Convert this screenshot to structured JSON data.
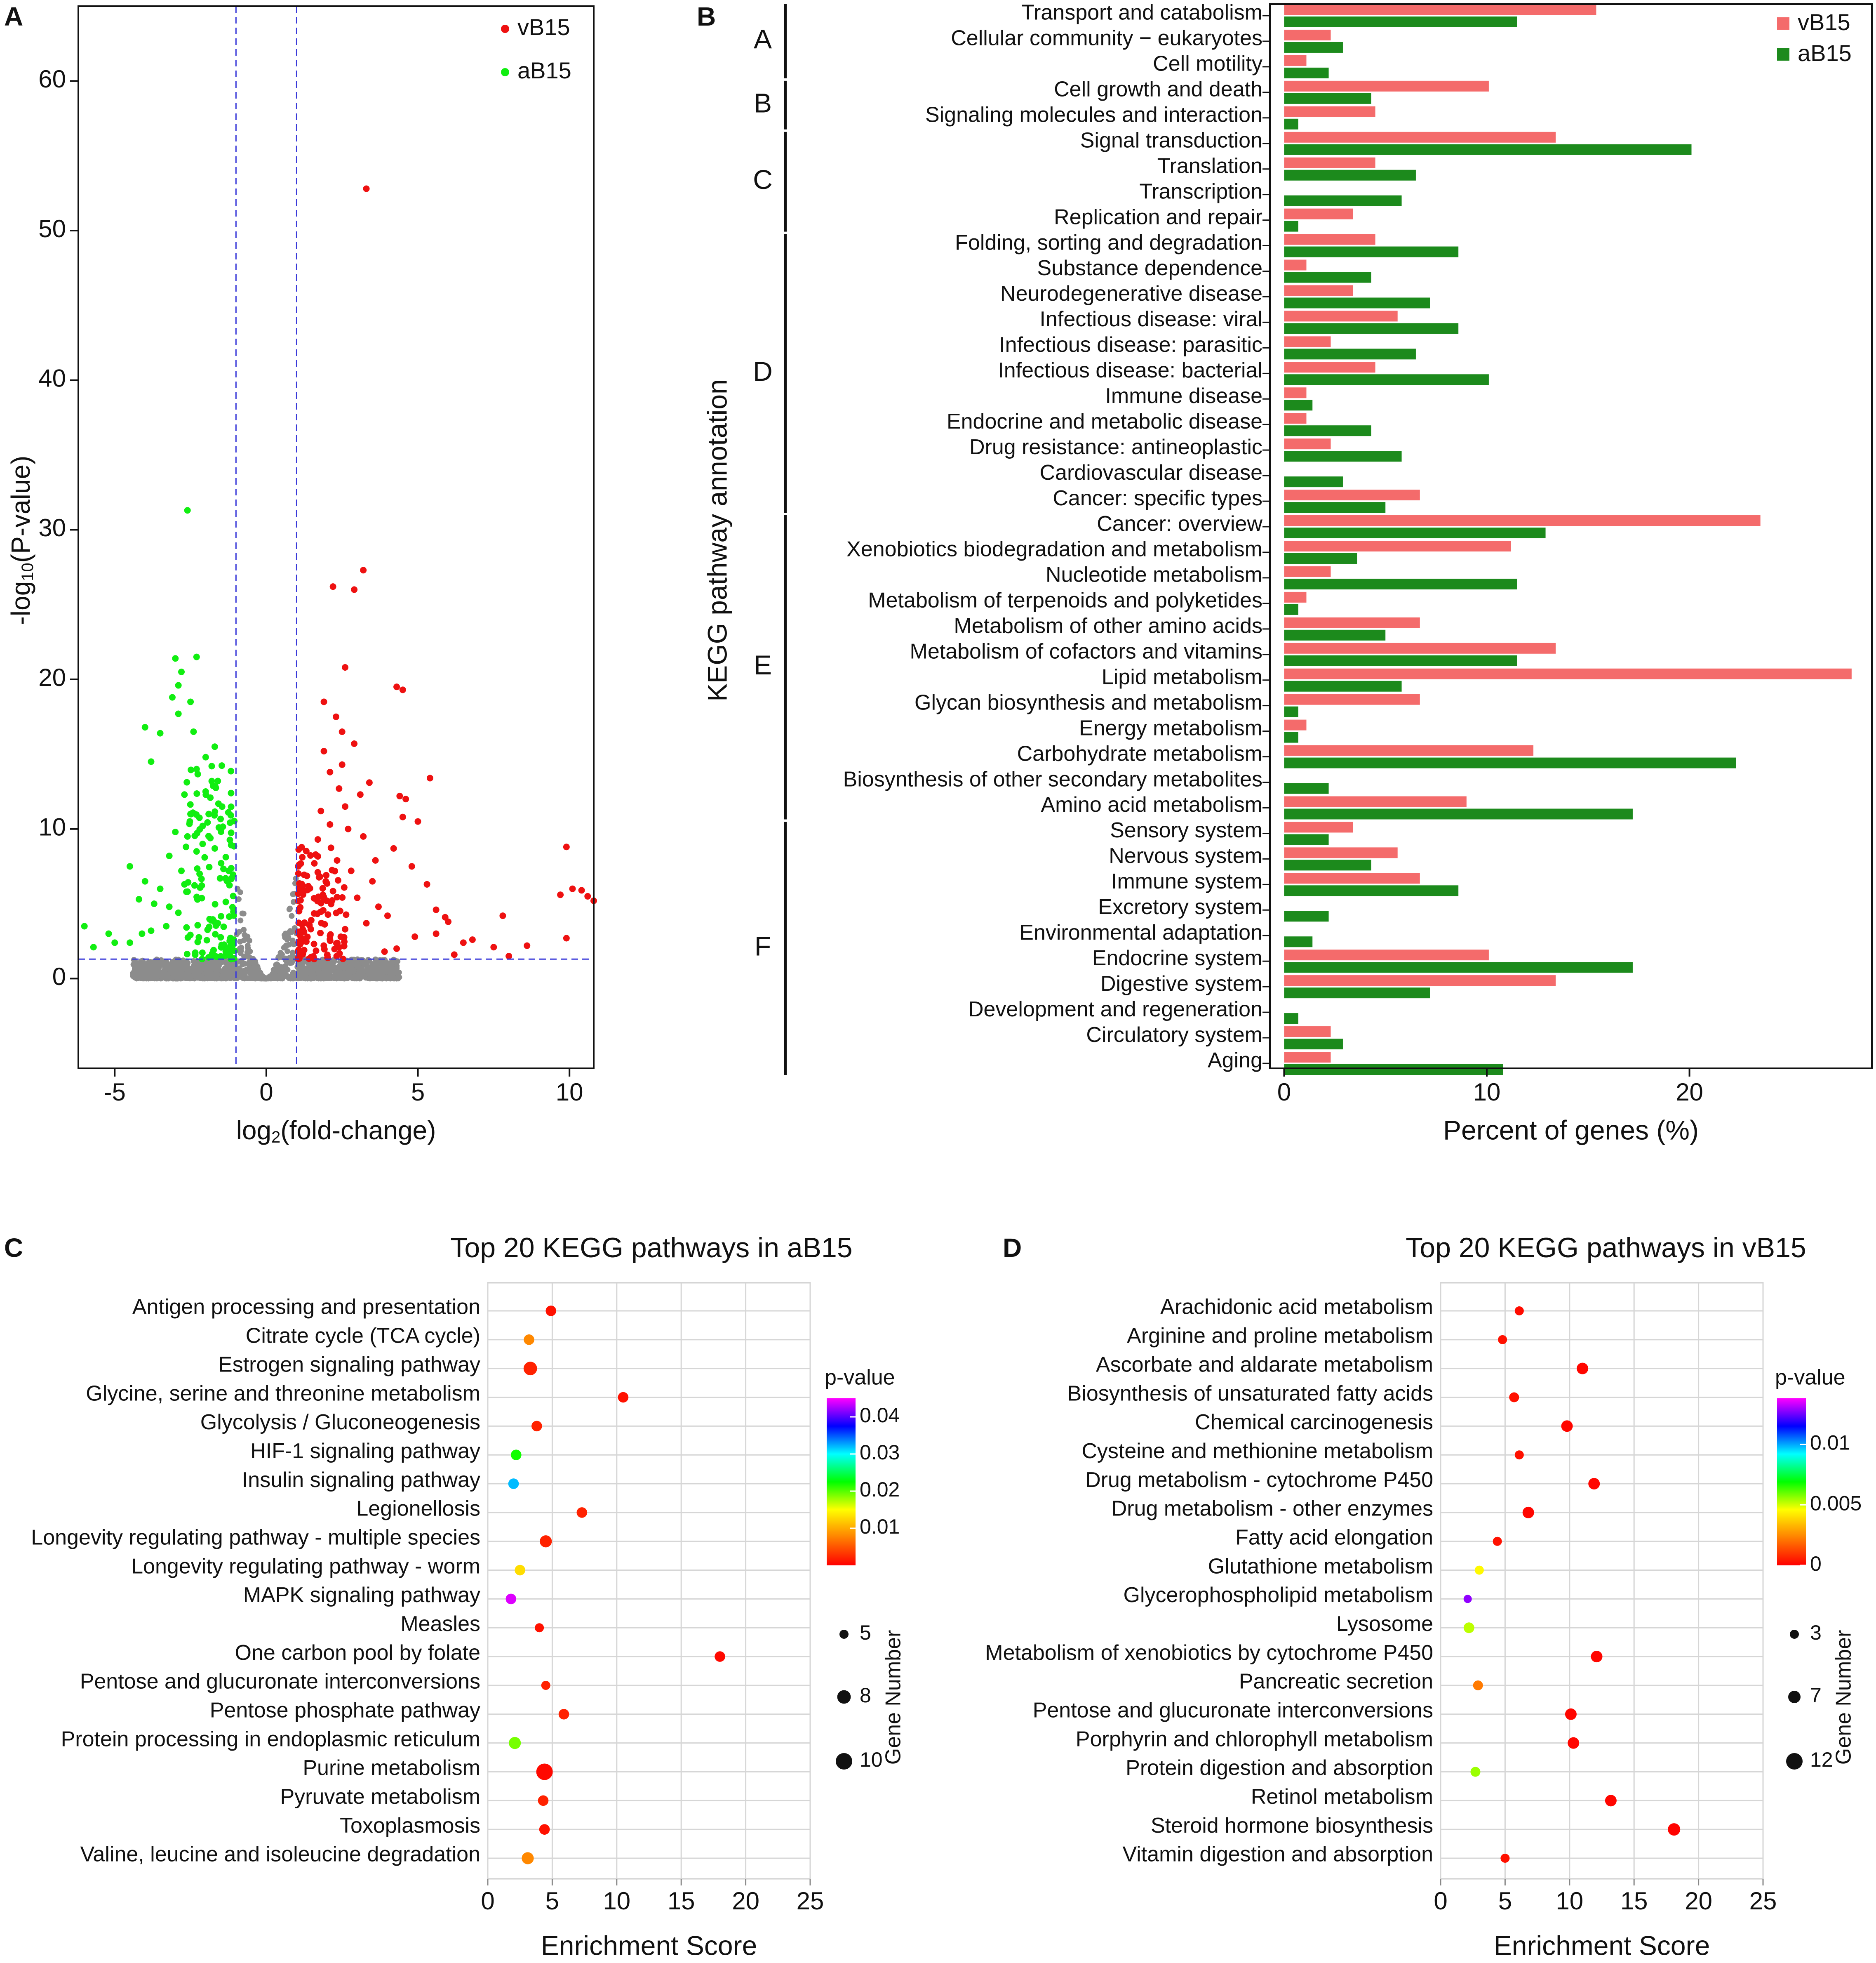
{
  "chart_data": [
    {
      "panel_label": "A",
      "type": "scatter",
      "title": "",
      "xlabel_base": "log",
      "xlabel_sub": "2",
      "xlabel_rest": "(fold-change)",
      "ylabel_base": "-log",
      "ylabel_sub": "10",
      "ylabel_rest": "(P-value)",
      "xlim": [
        -6.2,
        10.8
      ],
      "ylim": [
        -6,
        65
      ],
      "xticks": [
        -5,
        0,
        5,
        10
      ],
      "yticks": [
        0,
        10,
        20,
        30,
        40,
        50,
        60
      ],
      "thresholds": {
        "x": [
          -1,
          1
        ],
        "y": 1.3
      },
      "legend": [
        {
          "name": "vB15",
          "color": "#ee1111"
        },
        {
          "name": "aB15",
          "color": "#11ee11"
        }
      ],
      "series": [
        {
          "name": "vB15",
          "color": "#ee1111",
          "points": [
            [
              3.3,
              52.8
            ],
            [
              3.2,
              27.3
            ],
            [
              2.9,
              26.0
            ],
            [
              2.2,
              26.2
            ],
            [
              2.6,
              20.8
            ],
            [
              4.3,
              19.5
            ],
            [
              4.5,
              19.3
            ],
            [
              1.9,
              18.5
            ],
            [
              2.3,
              17.5
            ],
            [
              2.5,
              16.5
            ],
            [
              2.9,
              15.7
            ],
            [
              5.4,
              13.4
            ],
            [
              3.4,
              13.1
            ],
            [
              4.4,
              12.2
            ],
            [
              4.6,
              12.0
            ],
            [
              2.6,
              11.5
            ],
            [
              4.5,
              10.8
            ],
            [
              5.0,
              10.5
            ],
            [
              9.9,
              8.8
            ],
            [
              4.2,
              8.7
            ],
            [
              3.6,
              7.9
            ],
            [
              4.8,
              7.5
            ],
            [
              2.8,
              7.2
            ],
            [
              3.5,
              6.5
            ],
            [
              5.3,
              6.3
            ],
            [
              10.1,
              6.0
            ],
            [
              10.4,
              5.9
            ],
            [
              10.6,
              5.5
            ],
            [
              9.7,
              5.6
            ],
            [
              10.8,
              5.2
            ],
            [
              5.6,
              4.6
            ],
            [
              5.9,
              4.1
            ],
            [
              7.8,
              4.2
            ],
            [
              6.0,
              3.8
            ],
            [
              6.8,
              2.6
            ],
            [
              6.5,
              2.4
            ],
            [
              9.9,
              2.7
            ],
            [
              8.6,
              2.2
            ],
            [
              7.5,
              2.1
            ],
            [
              5.6,
              3.0
            ],
            [
              4.9,
              2.8
            ],
            [
              4.3,
              2.0
            ],
            [
              3.9,
              1.8
            ],
            [
              6.2,
              1.6
            ],
            [
              8.0,
              1.5
            ],
            [
              3.2,
              9.5
            ],
            [
              2.7,
              10.0
            ],
            [
              2.1,
              10.3
            ],
            [
              1.7,
              9.3
            ],
            [
              1.8,
              11.2
            ],
            [
              2.4,
              12.7
            ],
            [
              2.1,
              13.8
            ],
            [
              1.9,
              15.2
            ],
            [
              3.1,
              12.3
            ],
            [
              2.5,
              14.3
            ],
            [
              3.7,
              4.8
            ],
            [
              3.0,
              5.4
            ],
            [
              4.0,
              4.2
            ],
            [
              3.3,
              3.7
            ],
            [
              2.6,
              3.3
            ]
          ]
        },
        {
          "name": "aB15",
          "color": "#11ee11",
          "points": [
            [
              -2.6,
              31.3
            ],
            [
              -3.0,
              21.4
            ],
            [
              -2.3,
              21.5
            ],
            [
              -2.8,
              20.5
            ],
            [
              -2.9,
              19.6
            ],
            [
              -3.1,
              18.8
            ],
            [
              -2.5,
              18.5
            ],
            [
              -2.9,
              17.7
            ],
            [
              -3.5,
              16.4
            ],
            [
              -4.0,
              16.8
            ],
            [
              -2.4,
              16.5
            ],
            [
              -3.8,
              14.5
            ],
            [
              -2.3,
              14.0
            ],
            [
              -2.7,
              12.3
            ],
            [
              -2.5,
              11.0
            ],
            [
              -2.1,
              10.2
            ],
            [
              -2.3,
              8.5
            ],
            [
              -4.5,
              7.5
            ],
            [
              -2.8,
              7.2
            ],
            [
              -4.0,
              6.5
            ],
            [
              -3.5,
              6.0
            ],
            [
              -4.2,
              5.3
            ],
            [
              -3.7,
              5.0
            ],
            [
              -6.0,
              3.5
            ],
            [
              -5.2,
              3.0
            ],
            [
              -5.0,
              2.4
            ],
            [
              -5.7,
              2.1
            ],
            [
              -4.5,
              2.4
            ],
            [
              -3.3,
              3.5
            ],
            [
              -3.8,
              3.2
            ],
            [
              -2.0,
              14.8
            ],
            [
              -1.8,
              13.2
            ],
            [
              -2.0,
              12.5
            ],
            [
              -1.9,
              11.0
            ],
            [
              -2.6,
              9.5
            ],
            [
              -2.1,
              9.0
            ],
            [
              -3.2,
              8.2
            ],
            [
              -3.0,
              9.8
            ],
            [
              -1.7,
              15.5
            ],
            [
              -1.8,
              14.2
            ],
            [
              -2.2,
              7.0
            ],
            [
              -2.7,
              6.3
            ],
            [
              -3.2,
              4.8
            ],
            [
              -2.9,
              4.4
            ],
            [
              -4.1,
              3.0
            ]
          ]
        }
      ]
    },
    {
      "panel_label": "B",
      "type": "bar",
      "orientation": "horizontal",
      "xlabel": "Percent of genes (%)",
      "ylabel": "KEGG pathway annotation",
      "xlim": [
        -0.7,
        29
      ],
      "xticks": [
        0,
        10,
        20
      ],
      "legend": [
        {
          "name": "vB15",
          "color": "#f46b6b"
        },
        {
          "name": "aB15",
          "color": "#1c8a1c"
        }
      ],
      "groups": [
        {
          "label": "A",
          "start": 0,
          "end": 2
        },
        {
          "label": "B",
          "start": 3,
          "end": 4
        },
        {
          "label": "C",
          "start": 5,
          "end": 8
        },
        {
          "label": "D",
          "start": 9,
          "end": 19
        },
        {
          "label": "E",
          "start": 20,
          "end": 31
        },
        {
          "label": "F",
          "start": 32,
          "end": 41
        }
      ],
      "categories": [
        "Transport and catabolism",
        "Cellular community − eukaryotes",
        "Cell motility",
        "Cell growth and death",
        "Signaling molecules and interaction",
        "Signal transduction",
        "Translation",
        "Transcription",
        "Replication and repair",
        "Folding, sorting and degradation",
        "Substance dependence",
        "Neurodegenerative disease",
        "Infectious disease: viral",
        "Infectious disease: parasitic",
        "Infectious disease: bacterial",
        "Immune disease",
        "Endocrine and metabolic disease",
        "Drug resistance: antineoplastic",
        "Cardiovascular disease",
        "Cancer: specific types",
        "Cancer: overview",
        "Xenobiotics biodegradation and metabolism",
        "Nucleotide metabolism",
        "Metabolism of terpenoids and polyketides",
        "Metabolism of other amino acids",
        "Metabolism of cofactors and vitamins",
        "Lipid metabolism",
        "Glycan biosynthesis and metabolism",
        "Energy metabolism",
        "Carbohydrate metabolism",
        "Biosynthesis of other secondary metabolites",
        "Amino acid metabolism",
        "Sensory system",
        "Nervous system",
        "Immune system",
        "Excretory system",
        "Environmental adaptation",
        "Endocrine system",
        "Digestive system",
        "Development and regeneration",
        "Circulatory system",
        "Aging"
      ],
      "series": [
        {
          "name": "vB15",
          "color": "#f46b6b",
          "values": [
            15.4,
            2.3,
            1.1,
            10.1,
            4.5,
            13.4,
            4.5,
            0,
            3.4,
            4.5,
            1.1,
            3.4,
            5.6,
            2.3,
            4.5,
            1.1,
            1.1,
            2.3,
            0,
            6.7,
            23.5,
            11.2,
            2.3,
            1.1,
            6.7,
            13.4,
            28.0,
            6.7,
            1.1,
            12.3,
            0,
            9.0,
            3.4,
            5.6,
            6.7,
            0,
            0,
            10.1,
            13.4,
            0,
            2.3,
            2.3
          ]
        },
        {
          "name": "aB15",
          "color": "#1c8a1c",
          "values": [
            11.5,
            2.9,
            2.2,
            4.3,
            0.7,
            20.1,
            6.5,
            5.8,
            0.7,
            8.6,
            4.3,
            7.2,
            8.6,
            6.5,
            10.1,
            1.4,
            4.3,
            5.8,
            2.9,
            5.0,
            12.9,
            3.6,
            11.5,
            0.7,
            5.0,
            11.5,
            5.8,
            0.7,
            0.7,
            22.3,
            2.2,
            17.2,
            2.2,
            4.3,
            8.6,
            2.2,
            1.4,
            17.2,
            7.2,
            0.7,
            2.9,
            10.8
          ]
        }
      ]
    },
    {
      "panel_label": "C",
      "type": "scatter",
      "subtype": "bubble",
      "title": "Top 20 KEGG pathways in aB15",
      "xlabel": "Enrichment Score",
      "xlim": [
        0,
        25
      ],
      "xticks": [
        0,
        5,
        10,
        15,
        20,
        25
      ],
      "colorbar": {
        "title": "p-value",
        "min": 0,
        "max": 0.045,
        "ticks": [
          0.01,
          0.02,
          0.03,
          0.04
        ]
      },
      "size_legend": {
        "title": "Gene Number",
        "values": [
          5,
          8,
          10
        ]
      },
      "categories": [
        "Antigen processing and presentation",
        "Citrate cycle (TCA cycle)",
        "Estrogen signaling pathway",
        "Glycine, serine and threonine metabolism",
        "Glycolysis / Gluconeogenesis",
        "HIF-1 signaling pathway",
        "Insulin signaling pathway",
        "Legionellosis",
        "Longevity regulating pathway - multiple species",
        "Longevity regulating pathway - worm",
        "MAPK signaling pathway",
        "Measles",
        "One carbon pool by folate",
        "Pentose and glucuronate interconversions",
        "Pentose phosphate pathway",
        "Protein processing in endoplasmic reticulum",
        "Purine metabolism",
        "Pyruvate metabolism",
        "Toxoplasmosis",
        "Valine, leucine and isoleucine degradation"
      ],
      "enrichment": [
        4.9,
        3.2,
        3.3,
        10.5,
        3.8,
        2.2,
        2.0,
        7.3,
        4.5,
        2.5,
        1.8,
        4.0,
        18.0,
        4.5,
        5.9,
        2.1,
        4.4,
        4.3,
        4.4,
        3.1
      ],
      "pvalue": [
        0.001,
        0.008,
        0.002,
        0.001,
        0.002,
        0.022,
        0.032,
        0.002,
        0.002,
        0.013,
        0.044,
        0.001,
        0.0005,
        0.002,
        0.002,
        0.019,
        0.0005,
        0.002,
        0.001,
        0.008
      ],
      "gene_number": [
        6,
        6,
        8,
        6,
        6,
        6,
        6,
        6,
        7,
        6,
        6,
        5,
        6,
        5,
        6,
        7,
        10,
        6,
        6,
        7
      ]
    },
    {
      "panel_label": "D",
      "type": "scatter",
      "subtype": "bubble",
      "title": "Top 20 KEGG pathways in vB15",
      "xlabel": "Enrichment Score",
      "xlim": [
        0,
        25
      ],
      "xticks": [
        0,
        5,
        10,
        15,
        20,
        25
      ],
      "colorbar": {
        "title": "p-value",
        "min": 0,
        "max": 0.0138,
        "ticks": [
          0,
          0.005,
          0.01
        ]
      },
      "size_legend": {
        "title": "Gene Number",
        "values": [
          3,
          7,
          12
        ]
      },
      "categories": [
        "Arachidonic acid metabolism",
        "Arginine and proline metabolism",
        "Ascorbate and aldarate metabolism",
        "Biosynthesis of unsaturated fatty acids",
        "Chemical carcinogenesis",
        "Cysteine and methionine metabolism",
        "Drug metabolism - cytochrome P450",
        "Drug metabolism - other enzymes",
        "Fatty acid elongation",
        "Glutathione metabolism",
        "Glycerophospholipid metabolism",
        "Lysosome",
        "Metabolism of xenobiotics by cytochrome P450",
        "Pancreatic secretion",
        "Pentose and glucuronate interconversions",
        "Porphyrin and chlorophyll metabolism",
        "Protein digestion and absorption",
        "Retinol metabolism",
        "Steroid hormone biosynthesis",
        "Vitamin digestion and absorption"
      ],
      "enrichment": [
        6.1,
        4.8,
        11.0,
        5.7,
        9.8,
        6.1,
        11.9,
        6.8,
        4.4,
        3.0,
        2.1,
        2.2,
        12.1,
        2.9,
        10.1,
        10.3,
        2.7,
        13.2,
        18.1,
        5.0
      ],
      "pvalue": [
        0.0002,
        0.0003,
        0.0001,
        0.0003,
        0.0001,
        0.0003,
        0.0001,
        0.0001,
        0.0003,
        0.0045,
        0.0128,
        0.0052,
        0.0001,
        0.0022,
        0.0001,
        0.0001,
        0.0055,
        0.0001,
        5e-05,
        0.0003
      ],
      "gene_number": [
        3,
        3,
        6,
        4,
        6,
        3,
        6,
        6,
        3,
        3,
        2,
        5,
        6,
        4,
        6,
        6,
        4,
        6,
        7,
        3
      ]
    }
  ]
}
